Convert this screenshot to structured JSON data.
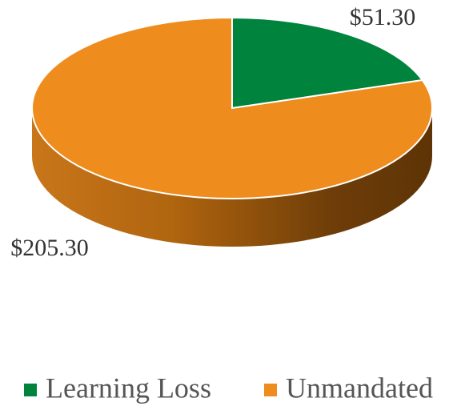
{
  "chart_data": {
    "type": "pie",
    "categories": [
      "Learning Loss",
      "Unmandated"
    ],
    "values": [
      51.3,
      205.3
    ],
    "value_labels": [
      "$51.30",
      "$205.30"
    ],
    "colors": [
      "#00843d",
      "#ef8c1e"
    ],
    "legend": "bottom"
  }
}
